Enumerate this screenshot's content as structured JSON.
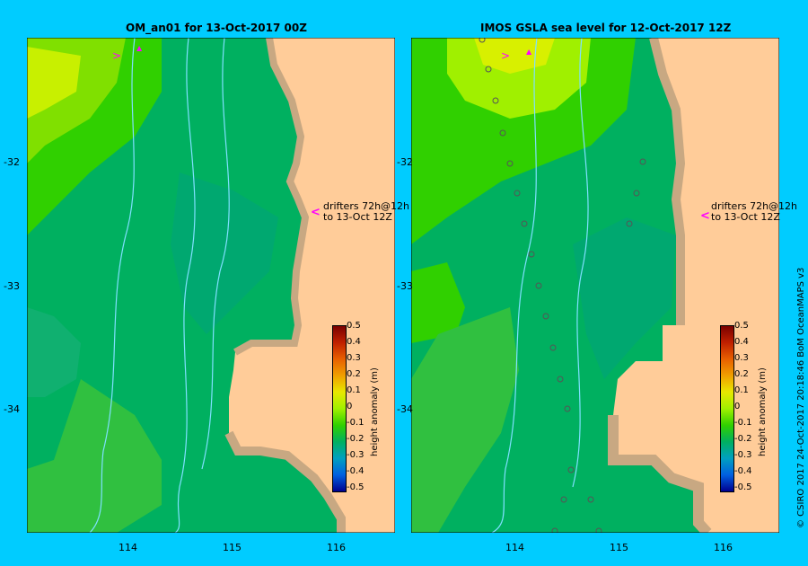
{
  "panels": [
    {
      "title": "OM_an01  for 13-Oct-2017 00Z",
      "drifters_note": {
        "line1": "drifters 72h@12h",
        "line2": "to 13-Oct 12Z"
      }
    },
    {
      "title": "IMOS GSLA sea level  for 12-Oct-2017 12Z",
      "drifters_note": {
        "line1": "drifters 72h@12h",
        "line2": "to 13-Oct 12Z"
      }
    }
  ],
  "axes": {
    "x_ticks": [
      "114",
      "115",
      "116"
    ],
    "y_ticks": [
      "-32",
      "-33",
      "-34"
    ]
  },
  "colorbar": {
    "title": "height anomaly (m)",
    "ticks": [
      "0.5",
      "0.4",
      "0.3",
      "0.2",
      "0.1",
      "0",
      "-0.1",
      "-0.2",
      "-0.3",
      "-0.4",
      "-0.5"
    ],
    "colors": [
      "#7a0000",
      "#c02000",
      "#e86000",
      "#f0a000",
      "#e8e800",
      "#a0f000",
      "#30d000",
      "#00b060",
      "#00a0c0",
      "#0060e0",
      "#000090"
    ]
  },
  "land_color": "#ffcc99",
  "coast_color": "#c8a882",
  "credit": "© CSIRO 2017   24-Oct-2017 20:18:46 BoM OceanMAPS v3"
}
